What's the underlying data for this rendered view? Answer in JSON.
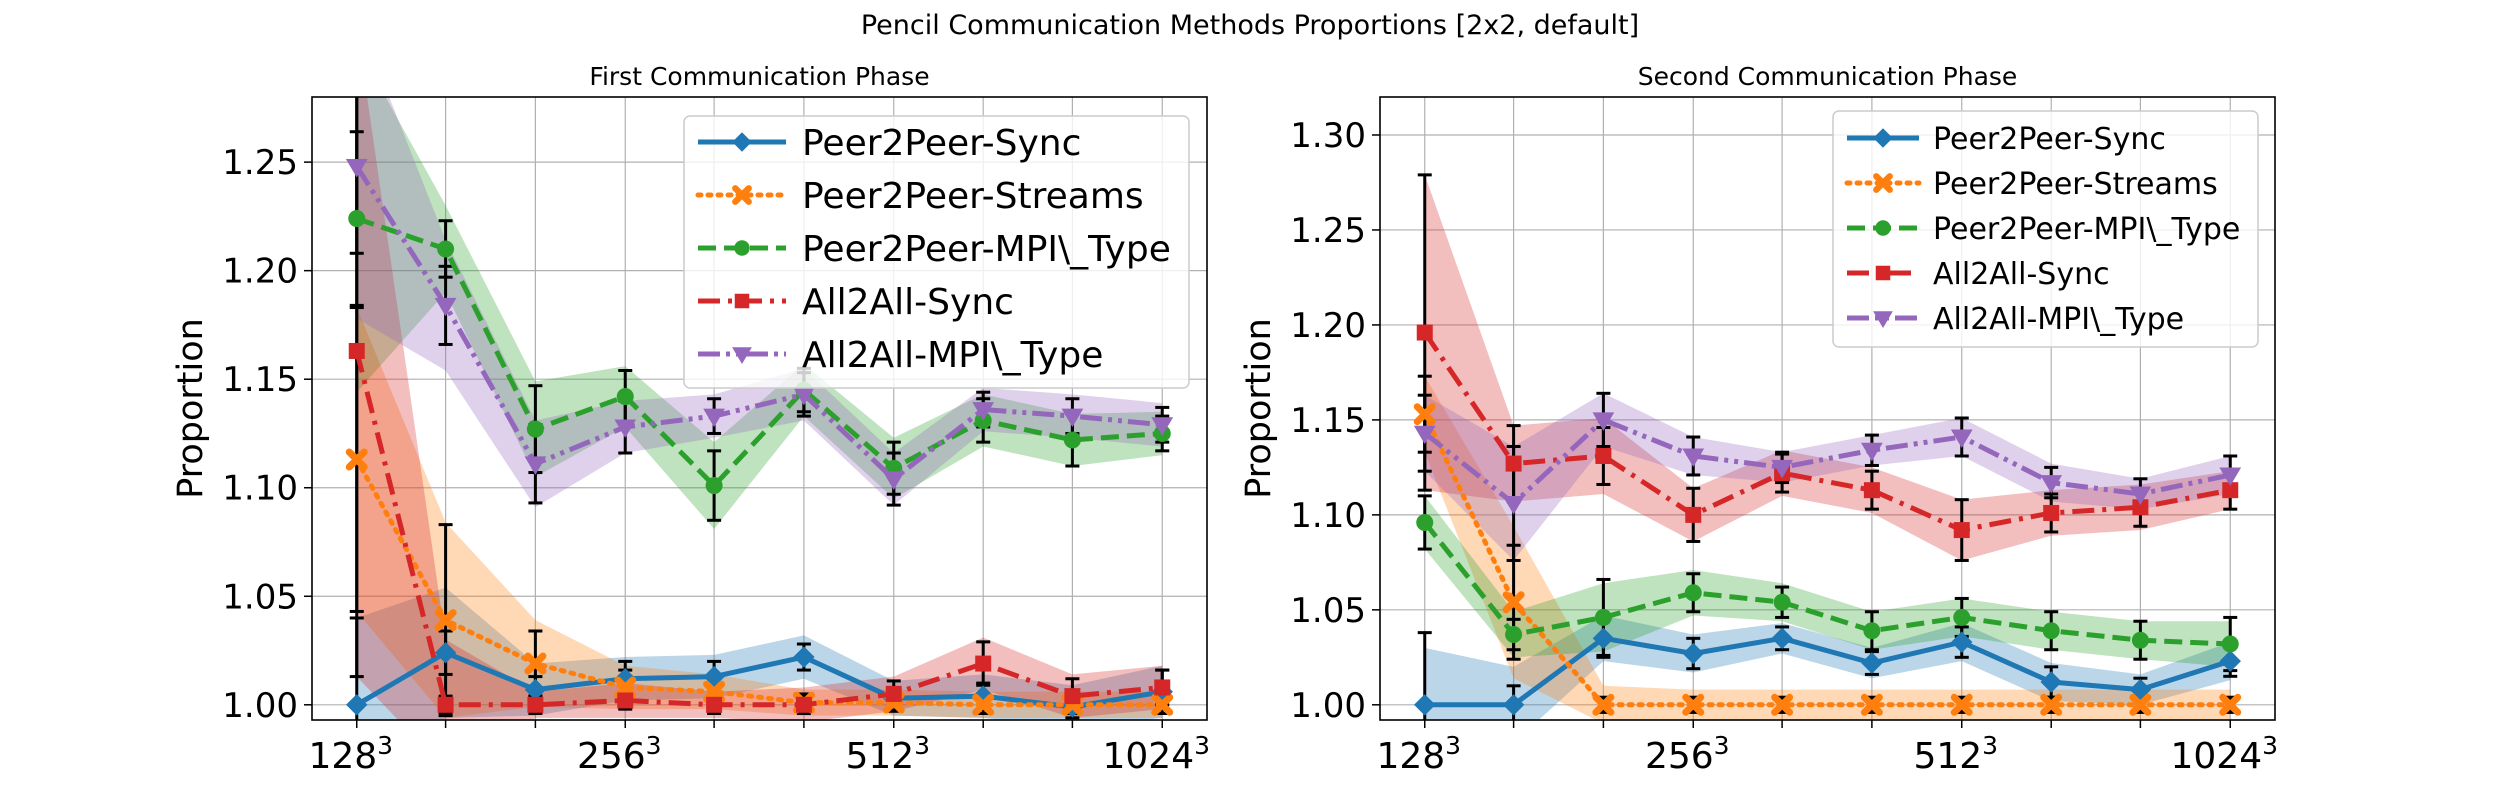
{
  "figure": {
    "suptitle": "Pencil Communication Methods Proportions [2x2, default]"
  },
  "chart_data": [
    {
      "type": "line",
      "title": "First Communication Phase",
      "xlabel": "",
      "ylabel": "Proportion",
      "x": [
        128,
        161,
        203,
        256,
        322,
        406,
        512,
        645,
        812,
        1024
      ],
      "x_scale": "log2 (problem size N, N^3)",
      "x_ticks": [
        128,
        256,
        512,
        1024
      ],
      "x_tick_labels": [
        {
          "base": "128",
          "exp": "3"
        },
        {
          "base": "256",
          "exp": "3"
        },
        {
          "base": "512",
          "exp": "3"
        },
        {
          "base": "1024",
          "exp": "3"
        }
      ],
      "ylim": [
        0.993,
        1.28
      ],
      "y_ticks": [
        1.0,
        1.05,
        1.1,
        1.15,
        1.2,
        1.25
      ],
      "y_tick_labels": [
        "1.00",
        "1.05",
        "1.10",
        "1.15",
        "1.20",
        "1.25"
      ],
      "grid": true,
      "legend": "top-right",
      "series": [
        {
          "name": "Peer2Peer-Sync",
          "color": "#1f77b4",
          "dash": "solid",
          "marker": "diamond",
          "values": [
            1.0,
            1.024,
            1.007,
            1.012,
            1.013,
            1.022,
            1.003,
            1.004,
            0.999,
            1.006
          ],
          "err": [
            0.04,
            0.01,
            0.006,
            0.008,
            0.007,
            0.006,
            0.005,
            0.006,
            0.005,
            0.01
          ],
          "band": [
            0.04,
            0.03,
            0.012,
            0.01,
            0.01,
            0.01,
            0.008,
            0.01,
            0.01,
            0.012
          ]
        },
        {
          "name": "Peer2Peer-Streams",
          "color": "#ff7f0e",
          "dash": "dotted",
          "marker": "x",
          "values": [
            1.113,
            1.039,
            1.019,
            1.008,
            1.006,
            1.001,
            1.001,
            1.0,
            1.0,
            1.0
          ],
          "err": [
            0.07,
            0.044,
            0.015,
            0.008,
            0.006,
            0.004,
            0.004,
            0.004,
            0.004,
            0.004
          ],
          "band": [
            0.07,
            0.045,
            0.02,
            0.01,
            0.008,
            0.006,
            0.006,
            0.006,
            0.006,
            0.006
          ]
        },
        {
          "name": "Peer2Peer-MPI\\_Type",
          "color": "#2ca02c",
          "dash": "dashed",
          "marker": "circle",
          "values": [
            1.224,
            1.21,
            1.127,
            1.142,
            1.101,
            1.145,
            1.109,
            1.131,
            1.122,
            1.125
          ],
          "err": [
            0.04,
            0.013,
            0.02,
            0.012,
            0.016,
            0.01,
            0.012,
            0.01,
            0.012,
            0.008
          ],
          "band": [
            0.08,
            0.02,
            0.022,
            0.014,
            0.02,
            0.012,
            0.014,
            0.012,
            0.012,
            0.01
          ]
        },
        {
          "name": "All2All-Sync",
          "color": "#d62728",
          "dash": "dashdot",
          "marker": "square",
          "values": [
            1.163,
            1.0,
            1.0,
            1.002,
            1.0,
            1.0,
            1.005,
            1.019,
            1.004,
            1.008
          ],
          "err": [
            0.15,
            0.004,
            0.004,
            0.004,
            0.004,
            0.004,
            0.006,
            0.01,
            0.008,
            0.008
          ],
          "band": [
            0.15,
            0.03,
            0.006,
            0.008,
            0.006,
            0.008,
            0.008,
            0.012,
            0.01,
            0.01
          ]
        },
        {
          "name": "All2All-MPI\\_Type",
          "color": "#9467bd",
          "dash": "dashdotdot",
          "marker": "triangle-down",
          "values": [
            1.248,
            1.184,
            1.111,
            1.128,
            1.133,
            1.143,
            1.104,
            1.136,
            1.133,
            1.129
          ],
          "err": [
            0.04,
            0.018,
            0.018,
            0.012,
            0.008,
            0.01,
            0.012,
            0.008,
            0.008,
            0.008
          ],
          "band": [
            0.07,
            0.03,
            0.02,
            0.012,
            0.01,
            0.012,
            0.012,
            0.01,
            0.01,
            0.01
          ]
        }
      ]
    },
    {
      "type": "line",
      "title": "Second Communication Phase",
      "xlabel": "",
      "ylabel": "Proportion",
      "x": [
        128,
        161,
        203,
        256,
        322,
        406,
        512,
        645,
        812,
        1024
      ],
      "x_scale": "log2 (problem size N, N^3)",
      "x_ticks": [
        128,
        256,
        512,
        1024
      ],
      "x_tick_labels": [
        {
          "base": "128",
          "exp": "3"
        },
        {
          "base": "256",
          "exp": "3"
        },
        {
          "base": "512",
          "exp": "3"
        },
        {
          "base": "1024",
          "exp": "3"
        }
      ],
      "ylim": [
        0.992,
        1.32
      ],
      "y_ticks": [
        1.0,
        1.05,
        1.1,
        1.15,
        1.2,
        1.25,
        1.3
      ],
      "y_tick_labels": [
        "1.00",
        "1.05",
        "1.10",
        "1.15",
        "1.20",
        "1.25",
        "1.30"
      ],
      "grid": true,
      "legend": "top-right",
      "series": [
        {
          "name": "Peer2Peer-Sync",
          "color": "#1f77b4",
          "dash": "solid",
          "marker": "diamond",
          "values": [
            1.0,
            1.0,
            1.035,
            1.027,
            1.035,
            1.022,
            1.033,
            1.012,
            1.008,
            1.023
          ],
          "err": [
            0.038,
            0.01,
            0.01,
            0.008,
            0.006,
            0.006,
            0.008,
            0.008,
            0.006,
            0.008
          ],
          "band": [
            0.03,
            0.02,
            0.012,
            0.01,
            0.008,
            0.008,
            0.01,
            0.01,
            0.008,
            0.01
          ]
        },
        {
          "name": "Peer2Peer-Streams",
          "color": "#ff7f0e",
          "dash": "dotted",
          "marker": "x",
          "values": [
            1.153,
            1.054,
            1.0,
            1.0,
            1.0,
            1.0,
            1.0,
            1.0,
            1.0,
            1.0
          ],
          "err": [
            0.02,
            0.03,
            0.004,
            0.004,
            0.004,
            0.004,
            0.004,
            0.004,
            0.004,
            0.004
          ],
          "band": [
            0.02,
            0.04,
            0.01,
            0.008,
            0.008,
            0.008,
            0.008,
            0.008,
            0.008,
            0.008
          ]
        },
        {
          "name": "Peer2Peer-MPI\\_Type",
          "color": "#2ca02c",
          "dash": "dashed",
          "marker": "circle",
          "values": [
            1.096,
            1.037,
            1.046,
            1.059,
            1.054,
            1.039,
            1.046,
            1.039,
            1.034,
            1.032
          ],
          "err": [
            0.014,
            0.008,
            0.02,
            0.01,
            0.008,
            0.01,
            0.01,
            0.01,
            0.01,
            0.014
          ],
          "band": [
            0.014,
            0.012,
            0.018,
            0.012,
            0.01,
            0.01,
            0.01,
            0.01,
            0.01,
            0.012
          ]
        },
        {
          "name": "All2All-Sync",
          "color": "#d62728",
          "dash": "dashdot",
          "marker": "square",
          "values": [
            1.196,
            1.127,
            1.131,
            1.1,
            1.122,
            1.113,
            1.092,
            1.101,
            1.104,
            1.113
          ],
          "err": [
            0.083,
            0.02,
            0.015,
            0.014,
            0.01,
            0.01,
            0.016,
            0.01,
            0.01,
            0.01
          ],
          "band": [
            0.083,
            0.02,
            0.02,
            0.014,
            0.012,
            0.012,
            0.016,
            0.012,
            0.012,
            0.01
          ]
        },
        {
          "name": "All2All-MPI\\_Type",
          "color": "#9467bd",
          "dash": "dashdotdot",
          "marker": "triangle-down",
          "values": [
            1.143,
            1.106,
            1.15,
            1.131,
            1.125,
            1.134,
            1.141,
            1.117,
            1.111,
            1.121
          ],
          "err": [
            0.02,
            0.03,
            0.014,
            0.01,
            0.008,
            0.008,
            0.01,
            0.008,
            0.008,
            0.01
          ],
          "band": [
            0.02,
            0.03,
            0.014,
            0.01,
            0.008,
            0.008,
            0.01,
            0.01,
            0.008,
            0.01
          ]
        }
      ]
    }
  ]
}
